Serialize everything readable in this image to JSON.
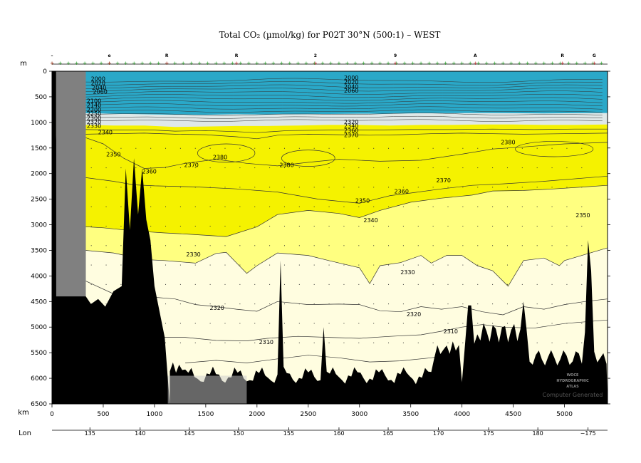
{
  "chart_data": {
    "type": "heatmap",
    "title": "Total CO₂ (µmol/kg) for P02T 30°N (500:1) – WEST",
    "depth_axis": {
      "label": "m",
      "range": [
        0,
        6500
      ],
      "ticks": [
        0,
        500,
        1000,
        1500,
        2000,
        2500,
        3000,
        3500,
        4000,
        4500,
        5000,
        5500,
        6000,
        6500
      ]
    },
    "km_axis": {
      "label": "km",
      "range": [
        0,
        5420
      ],
      "ticks": [
        0,
        500,
        1000,
        1500,
        2000,
        2500,
        3000,
        3500,
        4000,
        4500,
        5000
      ]
    },
    "lon_axis": {
      "label": "Lon",
      "ticks": [
        {
          "km": 370,
          "label": "135"
        },
        {
          "km": 860,
          "label": "140"
        },
        {
          "km": 1340,
          "label": "145"
        },
        {
          "km": 1820,
          "label": "150"
        },
        {
          "km": 2310,
          "label": "155"
        },
        {
          "km": 2800,
          "label": "160"
        },
        {
          "km": 3280,
          "label": "165"
        },
        {
          "km": 3770,
          "label": "170"
        },
        {
          "km": 4260,
          "label": "175"
        },
        {
          "km": 4740,
          "label": "180"
        },
        {
          "km": 5230,
          "label": "−175"
        }
      ]
    },
    "top_markers": [
      {
        "km": 0,
        "label": "–"
      },
      {
        "km": 560,
        "label": "e"
      },
      {
        "km": 1120,
        "label": "R"
      },
      {
        "km": 1800,
        "label": "R"
      },
      {
        "km": 2570,
        "label": "2"
      },
      {
        "km": 3350,
        "label": "9"
      },
      {
        "km": 4130,
        "label": "A"
      },
      {
        "km": 4980,
        "label": "R"
      },
      {
        "km": 5290,
        "label": "G"
      }
    ],
    "color_bands": [
      {
        "range": "<2320",
        "color": "#fffde0"
      },
      {
        "range": "2330–2350",
        "color": "#ffff80"
      },
      {
        "range": "2350–2380+",
        "color": "#f5f200"
      },
      {
        "range": "2150–2300",
        "color": "#dfe8e8"
      },
      {
        "range": "<2150",
        "color": "#2aa8c8"
      }
    ],
    "contour_labels": [
      {
        "km": 450,
        "depth": 190,
        "text": "2000"
      },
      {
        "km": 450,
        "depth": 270,
        "text": "2020"
      },
      {
        "km": 460,
        "depth": 360,
        "text": "2040"
      },
      {
        "km": 470,
        "depth": 440,
        "text": "2060"
      },
      {
        "km": 410,
        "depth": 620,
        "text": "2100"
      },
      {
        "km": 410,
        "depth": 700,
        "text": "2140"
      },
      {
        "km": 410,
        "depth": 790,
        "text": "2200"
      },
      {
        "km": 410,
        "depth": 870,
        "text": "2250"
      },
      {
        "km": 410,
        "depth": 950,
        "text": "2300"
      },
      {
        "km": 410,
        "depth": 1030,
        "text": "2320"
      },
      {
        "km": 410,
        "depth": 1110,
        "text": "2330"
      },
      {
        "km": 520,
        "depth": 1230,
        "text": "2340"
      },
      {
        "km": 600,
        "depth": 1660,
        "text": "2350"
      },
      {
        "km": 950,
        "depth": 2000,
        "text": "2360"
      },
      {
        "km": 1360,
        "depth": 1870,
        "text": "2370"
      },
      {
        "km": 1640,
        "depth": 1720,
        "text": "2380"
      },
      {
        "km": 2290,
        "depth": 1870,
        "text": "2380"
      },
      {
        "km": 2920,
        "depth": 170,
        "text": "2000"
      },
      {
        "km": 2920,
        "depth": 250,
        "text": "2020"
      },
      {
        "km": 2920,
        "depth": 340,
        "text": "2040"
      },
      {
        "km": 2920,
        "depth": 420,
        "text": "2060"
      },
      {
        "km": 2920,
        "depth": 1030,
        "text": "2320"
      },
      {
        "km": 2920,
        "depth": 1110,
        "text": "2340"
      },
      {
        "km": 2920,
        "depth": 1200,
        "text": "2360"
      },
      {
        "km": 2920,
        "depth": 1290,
        "text": "2370"
      },
      {
        "km": 4450,
        "depth": 1430,
        "text": "2380"
      },
      {
        "km": 3030,
        "depth": 2570,
        "text": "2350"
      },
      {
        "km": 3410,
        "depth": 2390,
        "text": "2360"
      },
      {
        "km": 3820,
        "depth": 2170,
        "text": "2370"
      },
      {
        "km": 3110,
        "depth": 2950,
        "text": "2340"
      },
      {
        "km": 5180,
        "depth": 2850,
        "text": "2350"
      },
      {
        "km": 1380,
        "depth": 3620,
        "text": "2330"
      },
      {
        "km": 3470,
        "depth": 3970,
        "text": "2330"
      },
      {
        "km": 1610,
        "depth": 4660,
        "text": "2320"
      },
      {
        "km": 3530,
        "depth": 4790,
        "text": "2320"
      },
      {
        "km": 2090,
        "depth": 5330,
        "text": "2310"
      },
      {
        "km": 3890,
        "depth": 5120,
        "text": "2310"
      }
    ],
    "stamp_lines": [
      "WOCE",
      "HYDROGRAPHIC",
      "ATLAS"
    ],
    "footer": "Computer Generated"
  }
}
